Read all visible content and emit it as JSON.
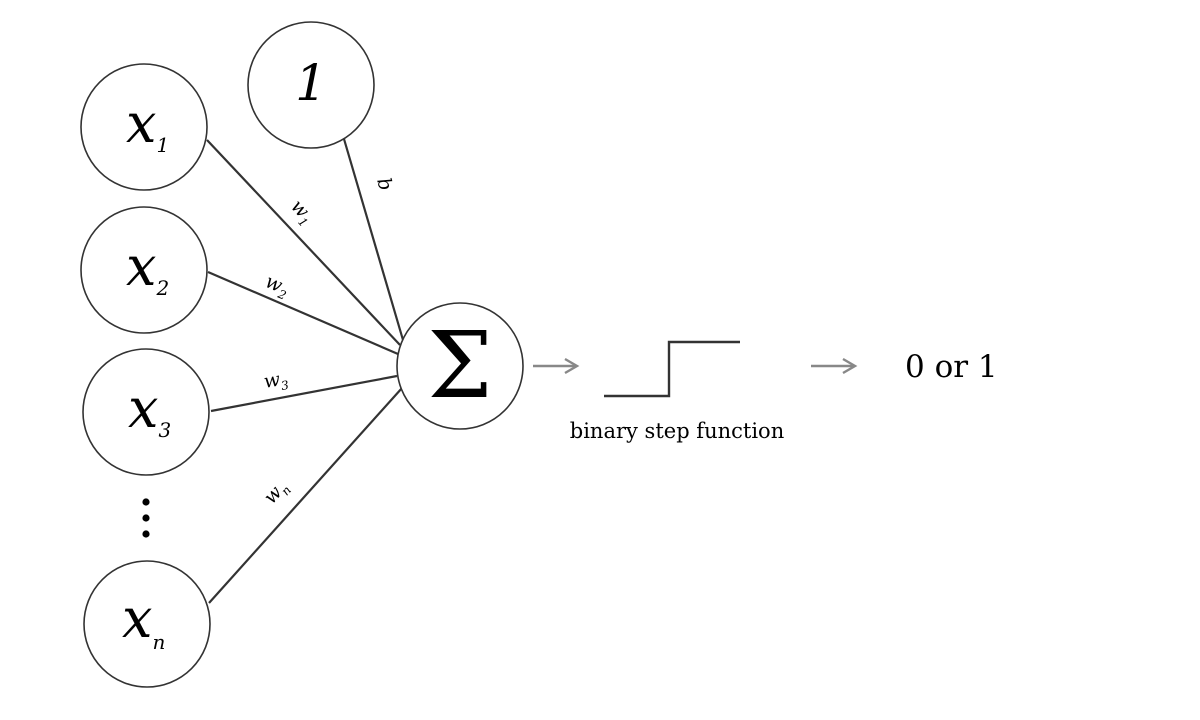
{
  "inputs": [
    {
      "symbol": "x",
      "subscript": "1",
      "weight": "w",
      "weight_sub": "1"
    },
    {
      "symbol": "x",
      "subscript": "2",
      "weight": "w",
      "weight_sub": "2"
    },
    {
      "symbol": "x",
      "subscript": "3",
      "weight": "w",
      "weight_sub": "3"
    },
    {
      "symbol": "x",
      "subscript": "n",
      "weight": "w",
      "weight_sub": "n"
    }
  ],
  "bias": {
    "value": "1",
    "label": "b"
  },
  "sum_symbol": "Σ",
  "activation": {
    "label": "binary step function"
  },
  "output": {
    "label": "0 or 1"
  }
}
